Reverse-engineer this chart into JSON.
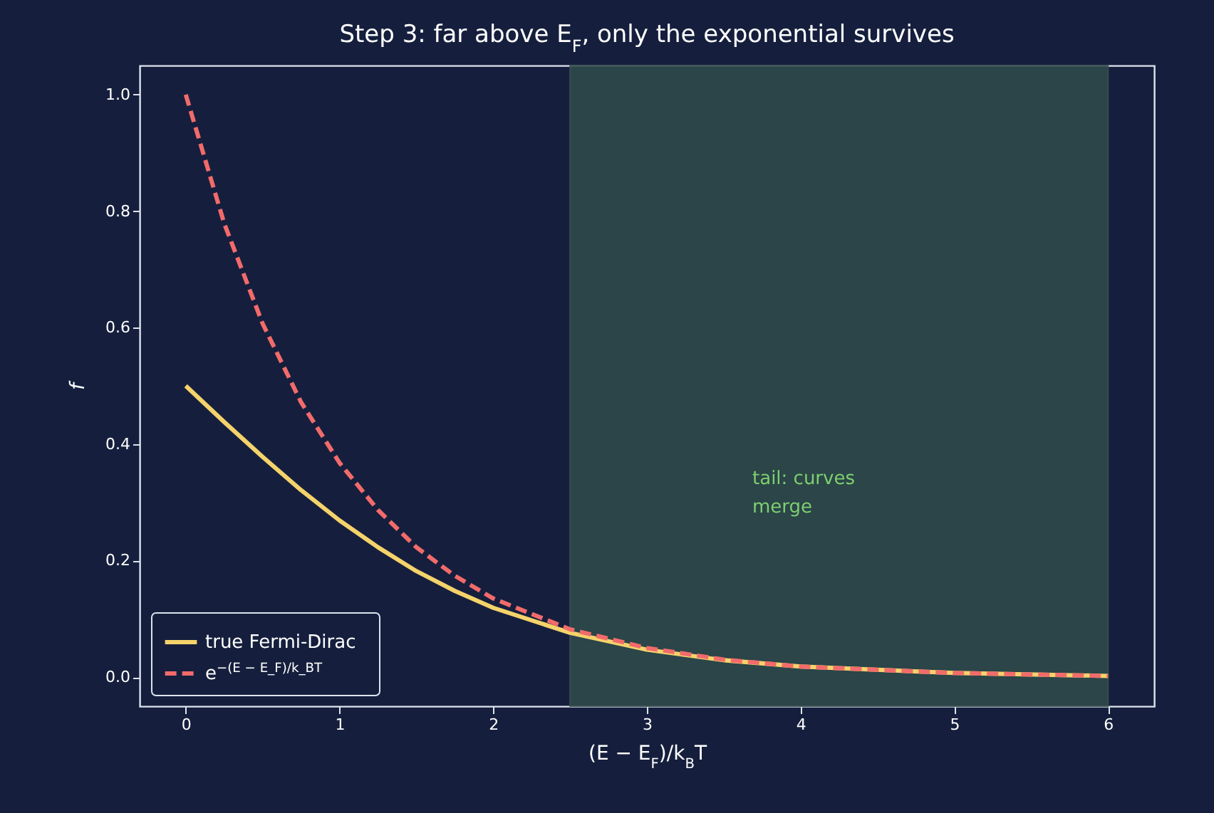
{
  "chart_data": {
    "type": "line",
    "title": "Step 3: far above E$_{F}$, only the exponential survives",
    "xlabel": "(E − E$_{F}$)/k$_{B}$T",
    "ylabel": "f",
    "x": [
      0,
      0.25,
      0.5,
      0.75,
      1,
      1.25,
      1.5,
      1.75,
      2,
      2.5,
      3,
      3.5,
      4,
      5,
      6
    ],
    "series": [
      {
        "name": "true Fermi-Dirac",
        "color": "#f5d36b",
        "line_style": "solid",
        "values": [
          0.5,
          0.438,
          0.378,
          0.321,
          0.269,
          0.223,
          0.182,
          0.148,
          0.119,
          0.076,
          0.047,
          0.029,
          0.018,
          0.007,
          0.002
        ]
      },
      {
        "name": "e$^{−(E − E_F)/k_BT}$",
        "color": "#f26b6b",
        "line_style": "dashed",
        "values": [
          1,
          0.779,
          0.607,
          0.472,
          0.368,
          0.287,
          0.223,
          0.174,
          0.135,
          0.082,
          0.05,
          0.03,
          0.018,
          0.007,
          0.002
        ]
      }
    ],
    "bands": [
      {
        "axis": "x",
        "from": 2.5,
        "to": 6,
        "color": "#2e4a4a"
      }
    ],
    "annotations": [
      "tail: curves\nmerge"
    ],
    "xlim": [
      -0.3,
      6.3
    ],
    "xticks": [
      0,
      1,
      2,
      3,
      4,
      5,
      6
    ],
    "ylim": [
      -0.05,
      1.05
    ],
    "yticks": [
      {
        "value": 0,
        "label": "0.0"
      },
      {
        "value": 0.2,
        "label": "0.2"
      },
      {
        "value": 0.4,
        "label": "0.4"
      },
      {
        "value": 0.6,
        "label": "0.6"
      },
      {
        "value": 0.8,
        "label": "0.8"
      },
      {
        "value": 1,
        "label": "1.0"
      }
    ],
    "grid": false,
    "legend": "bottom left",
    "marker": "none"
  }
}
